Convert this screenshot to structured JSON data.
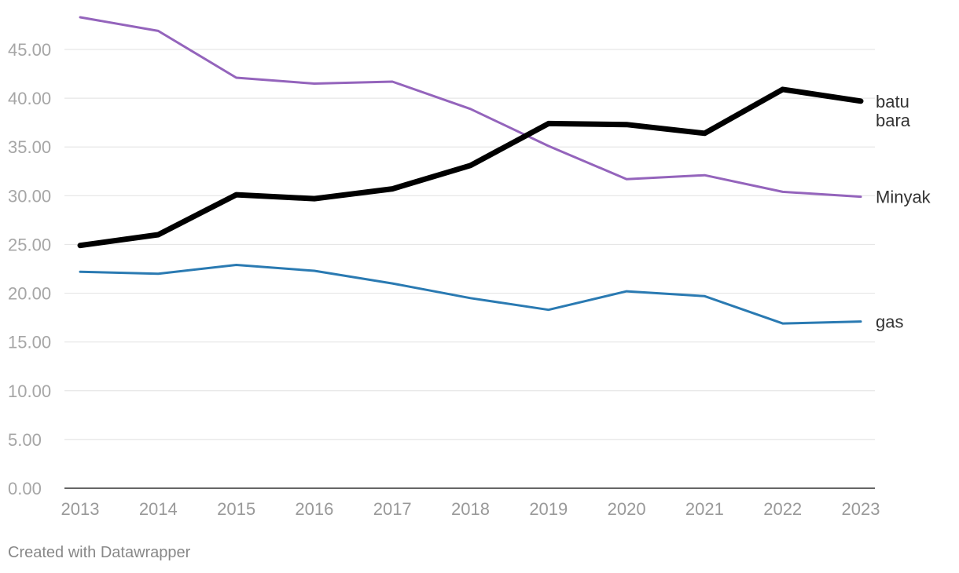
{
  "chart_data": {
    "type": "line",
    "title": "",
    "xlabel": "",
    "ylabel": "",
    "x": [
      2013,
      2014,
      2015,
      2016,
      2017,
      2018,
      2019,
      2020,
      2021,
      2022,
      2023
    ],
    "x_tick_labels": [
      "2013",
      "2014",
      "2015",
      "2016",
      "2017",
      "2018",
      "2019",
      "2020",
      "2021",
      "2022",
      "2023"
    ],
    "ylim": [
      0,
      48
    ],
    "y_ticks": [
      0,
      5,
      10,
      15,
      20,
      25,
      30,
      35,
      40,
      45
    ],
    "y_tick_labels": [
      "0.00",
      "5.00",
      "10.00",
      "15.00",
      "20.00",
      "25.00",
      "30.00",
      "35.00",
      "40.00",
      "45.00"
    ],
    "grid": true,
    "legend": "direct labels at line ends",
    "series": [
      {
        "name": "Minyak",
        "label_lines": [
          "Minyak"
        ],
        "color": "#9464bc",
        "emphasis": "normal",
        "values": [
          48.3,
          46.9,
          42.1,
          41.5,
          41.7,
          38.9,
          35.1,
          31.7,
          32.1,
          30.4,
          29.9
        ]
      },
      {
        "name": "batu bara",
        "label_lines": [
          "batu",
          "bara"
        ],
        "color": "#000000",
        "emphasis": "bold",
        "values": [
          24.9,
          26.0,
          30.1,
          29.7,
          30.7,
          33.1,
          37.4,
          37.3,
          36.4,
          40.9,
          39.7
        ]
      },
      {
        "name": "gas",
        "label_lines": [
          "gas"
        ],
        "color": "#2a7ab2",
        "emphasis": "normal",
        "values": [
          22.2,
          22.0,
          22.9,
          22.3,
          21.0,
          19.5,
          18.3,
          20.2,
          19.7,
          16.9,
          17.1
        ]
      }
    ]
  },
  "footer": {
    "credit": "Created with Datawrapper"
  }
}
